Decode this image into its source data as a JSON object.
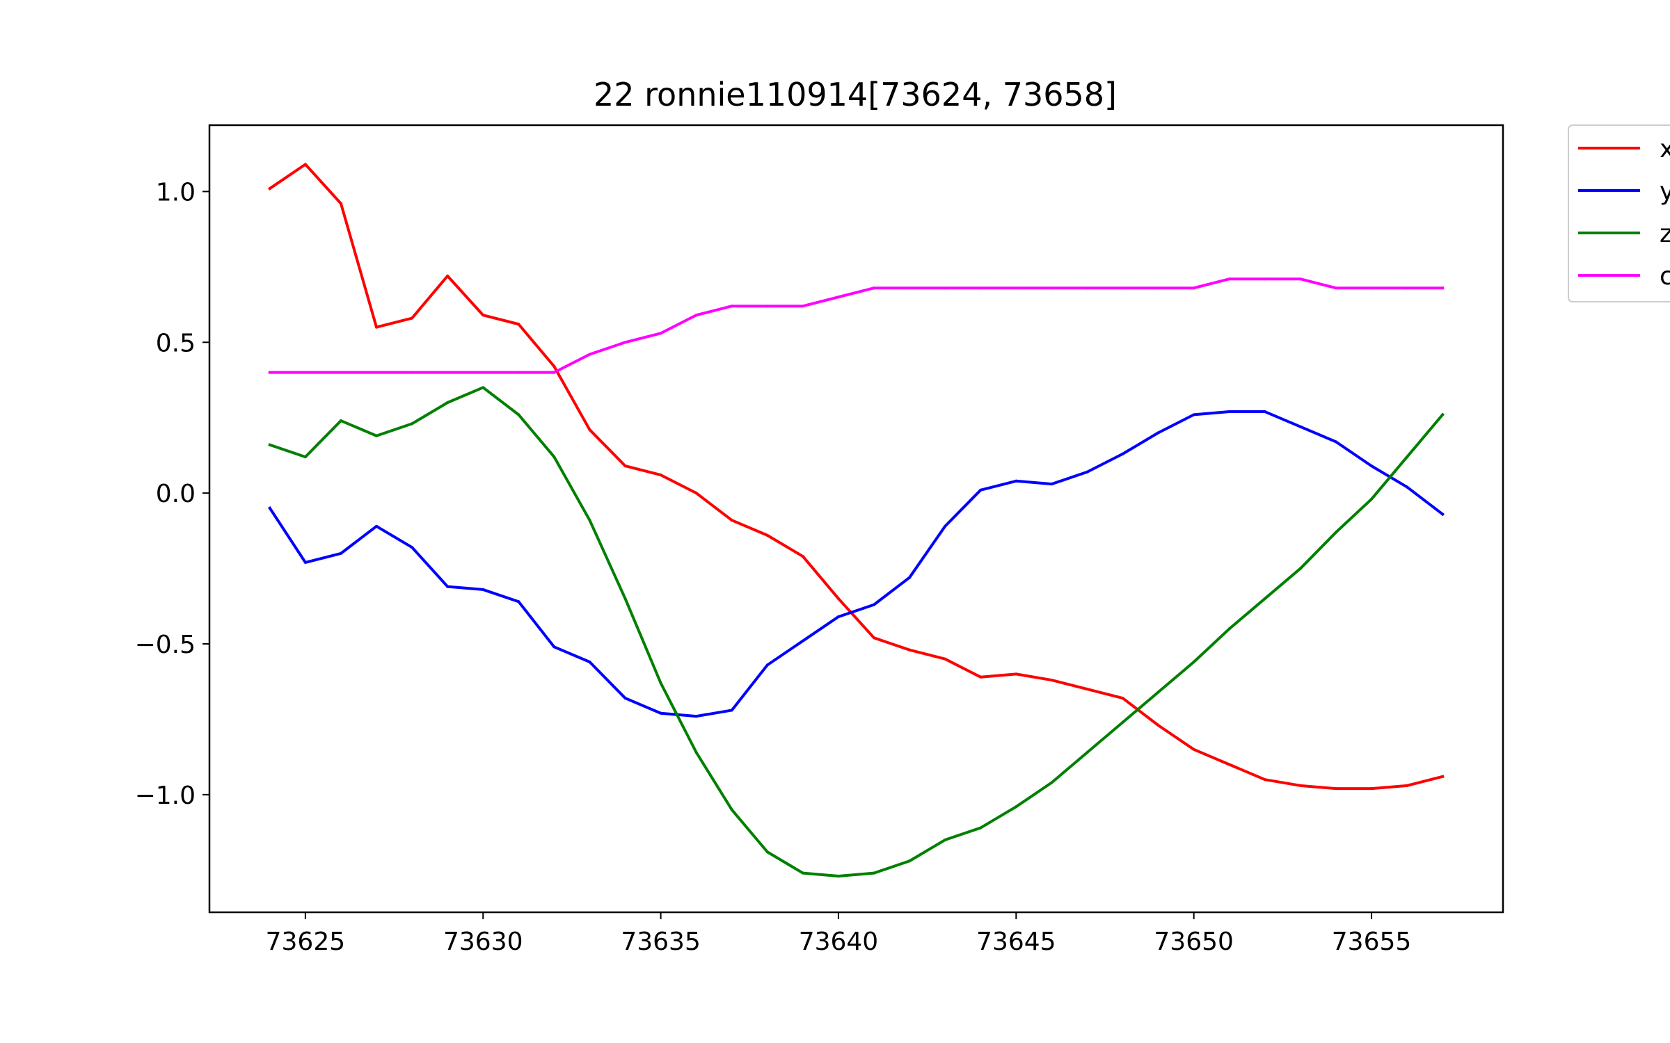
{
  "chart_data": {
    "type": "line",
    "title": "22 ronnie110914[73624, 73658]",
    "xlabel": "",
    "ylabel": "",
    "xlim": [
      73622.3,
      73658.7
    ],
    "ylim": [
      -1.39,
      1.22
    ],
    "xticks": [
      73625,
      73630,
      73635,
      73640,
      73645,
      73650,
      73655
    ],
    "xtick_labels": [
      "73625",
      "73630",
      "73635",
      "73640",
      "73645",
      "73650",
      "73655"
    ],
    "yticks": [
      1.0,
      0.5,
      0.0,
      -0.5,
      -1.0
    ],
    "ytick_labels": [
      "1.0",
      "0.5",
      "0.0",
      "−0.5",
      "−1.0"
    ],
    "grid": false,
    "legend_position": "outside-top-right",
    "x": [
      73624,
      73625,
      73626,
      73627,
      73628,
      73629,
      73630,
      73631,
      73632,
      73633,
      73634,
      73635,
      73636,
      73637,
      73638,
      73639,
      73640,
      73641,
      73642,
      73643,
      73644,
      73645,
      73646,
      73647,
      73648,
      73649,
      73650,
      73651,
      73652,
      73653,
      73654,
      73655,
      73656,
      73657
    ],
    "series": [
      {
        "name": "x",
        "color": "#ff0000",
        "values": [
          1.01,
          1.09,
          0.96,
          0.55,
          0.58,
          0.72,
          0.59,
          0.56,
          0.42,
          0.21,
          0.09,
          0.06,
          0.0,
          -0.09,
          -0.14,
          -0.21,
          -0.35,
          -0.48,
          -0.52,
          -0.55,
          -0.61,
          -0.6,
          -0.62,
          -0.65,
          -0.68,
          -0.77,
          -0.85,
          -0.9,
          -0.95,
          -0.97,
          -0.98,
          -0.98,
          -0.97,
          -0.94
        ]
      },
      {
        "name": "y",
        "color": "#0000ff",
        "values": [
          -0.05,
          -0.23,
          -0.2,
          -0.11,
          -0.18,
          -0.31,
          -0.32,
          -0.36,
          -0.51,
          -0.56,
          -0.68,
          -0.73,
          -0.74,
          -0.72,
          -0.57,
          -0.49,
          -0.41,
          -0.37,
          -0.28,
          -0.11,
          0.01,
          0.04,
          0.03,
          0.07,
          0.13,
          0.2,
          0.26,
          0.27,
          0.27,
          0.22,
          0.17,
          0.09,
          0.02,
          -0.07
        ]
      },
      {
        "name": "z",
        "color": "#008000",
        "values": [
          0.16,
          0.12,
          0.24,
          0.19,
          0.23,
          0.3,
          0.35,
          0.26,
          0.12,
          -0.09,
          -0.35,
          -0.63,
          -0.86,
          -1.05,
          -1.19,
          -1.26,
          -1.27,
          -1.26,
          -1.22,
          -1.15,
          -1.11,
          -1.04,
          -0.96,
          -0.86,
          -0.76,
          -0.66,
          -0.56,
          -0.45,
          -0.35,
          -0.25,
          -0.13,
          -0.02,
          0.12,
          0.26
        ]
      },
      {
        "name": "c",
        "color": "#ff00ff",
        "values": [
          0.4,
          0.4,
          0.4,
          0.4,
          0.4,
          0.4,
          0.4,
          0.4,
          0.4,
          0.46,
          0.5,
          0.53,
          0.59,
          0.62,
          0.62,
          0.62,
          0.65,
          0.68,
          0.68,
          0.68,
          0.68,
          0.68,
          0.68,
          0.68,
          0.68,
          0.68,
          0.68,
          0.71,
          0.71,
          0.71,
          0.68,
          0.68,
          0.68,
          0.68
        ]
      }
    ]
  }
}
